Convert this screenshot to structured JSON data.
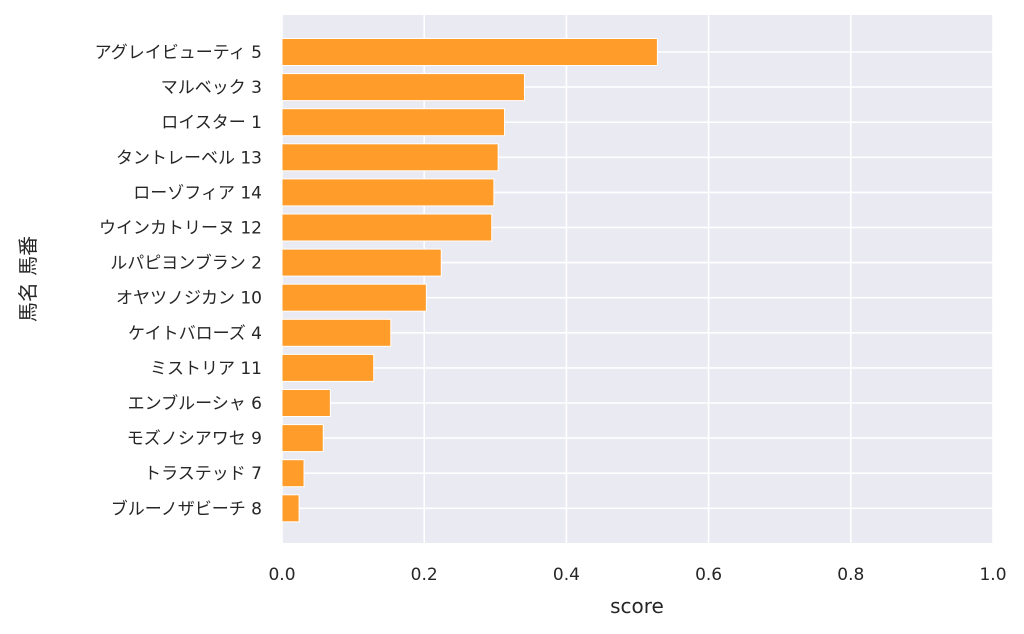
{
  "chart_data": {
    "type": "bar",
    "orientation": "horizontal",
    "categories": [
      "アグレイビューティ 5",
      "マルベック 3",
      "ロイスター 1",
      "タントレーベル 13",
      "ローゾフィア 14",
      "ウインカトリーヌ 12",
      "ルパピヨンブラン 2",
      "オヤツノジカン 10",
      "ケイトバローズ 4",
      "ミストリア 11",
      "エンブルーシャ 6",
      "モズノシアワセ 9",
      "トラステッド 7",
      "ブルーノザビーチ 8"
    ],
    "values": [
      0.528,
      0.341,
      0.313,
      0.304,
      0.298,
      0.295,
      0.224,
      0.203,
      0.153,
      0.129,
      0.068,
      0.058,
      0.031,
      0.024
    ],
    "xlabel": "score",
    "ylabel": "馬名 馬番",
    "xlim": [
      0,
      1.0
    ],
    "xticks": [
      "0.0",
      "0.2",
      "0.4",
      "0.6",
      "0.8",
      "1.0"
    ],
    "grid": true,
    "colors": {
      "bar": "#ff9c2a",
      "bar_edge": "#ffffff",
      "plot_background": "#eaeaf2",
      "grid": "#ffffff"
    }
  }
}
